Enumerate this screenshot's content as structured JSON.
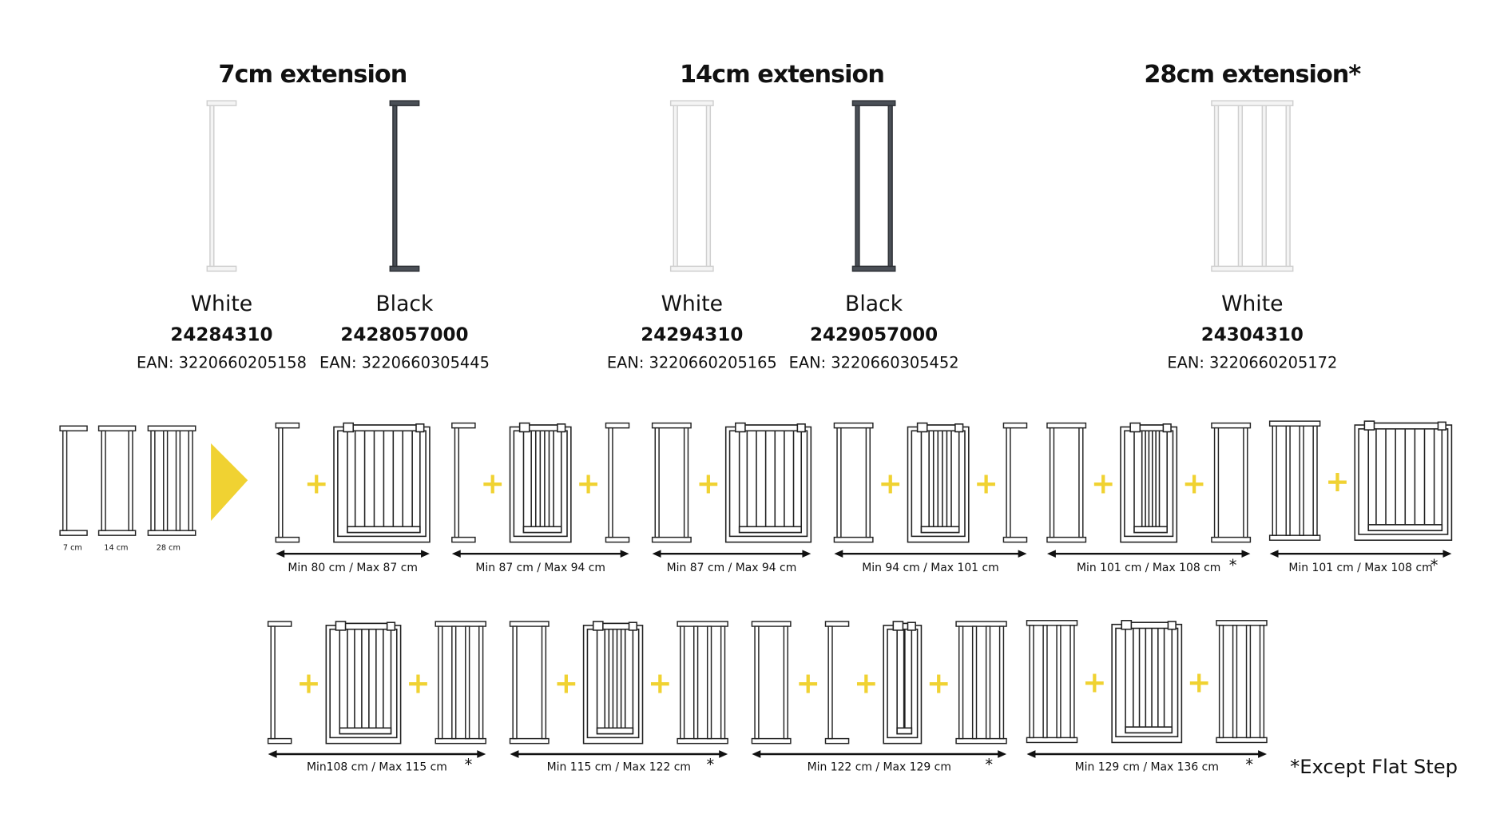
{
  "products": [
    {
      "title": "7cm extension",
      "variants": [
        {
          "color": "White",
          "code": "24284310",
          "ean": "EAN: 3220660205158"
        },
        {
          "color": "Black",
          "code": "2428057000",
          "ean": "EAN: 3220660305445"
        }
      ]
    },
    {
      "title": "14cm extension",
      "variants": [
        {
          "color": "White",
          "code": "24294310",
          "ean": "EAN: 3220660205165"
        },
        {
          "color": "Black",
          "code": "2429057000",
          "ean": "EAN: 3220660305452"
        }
      ]
    },
    {
      "title": "28cm extension*",
      "variants": [
        {
          "color": "White",
          "code": "24304310",
          "ean": "EAN: 3220660205172"
        }
      ]
    }
  ],
  "legend": [
    "7 cm",
    "14 cm",
    "28 cm"
  ],
  "configurations": [
    {
      "label": "Min 80 cm / Max 87 cm"
    },
    {
      "label": "Min 87 cm / Max 94 cm"
    },
    {
      "label": "Min 87 cm / Max 94 cm"
    },
    {
      "label": "Min 94 cm / Max 101 cm"
    },
    {
      "label": "Min 101 cm / Max 108 cm",
      "note": "*"
    },
    {
      "label": "Min 101 cm / Max 108 cm",
      "note": "*"
    },
    {
      "label": "Min108 cm / Max 115 cm",
      "note": "*"
    },
    {
      "label": "Min 115 cm / Max 122 cm",
      "note": "*"
    },
    {
      "label": "Min 122 cm / Max 129 cm",
      "note": "*"
    },
    {
      "label": "Min 129 cm / Max 136 cm",
      "note": "*"
    }
  ],
  "footnote": "*Except Flat Step"
}
